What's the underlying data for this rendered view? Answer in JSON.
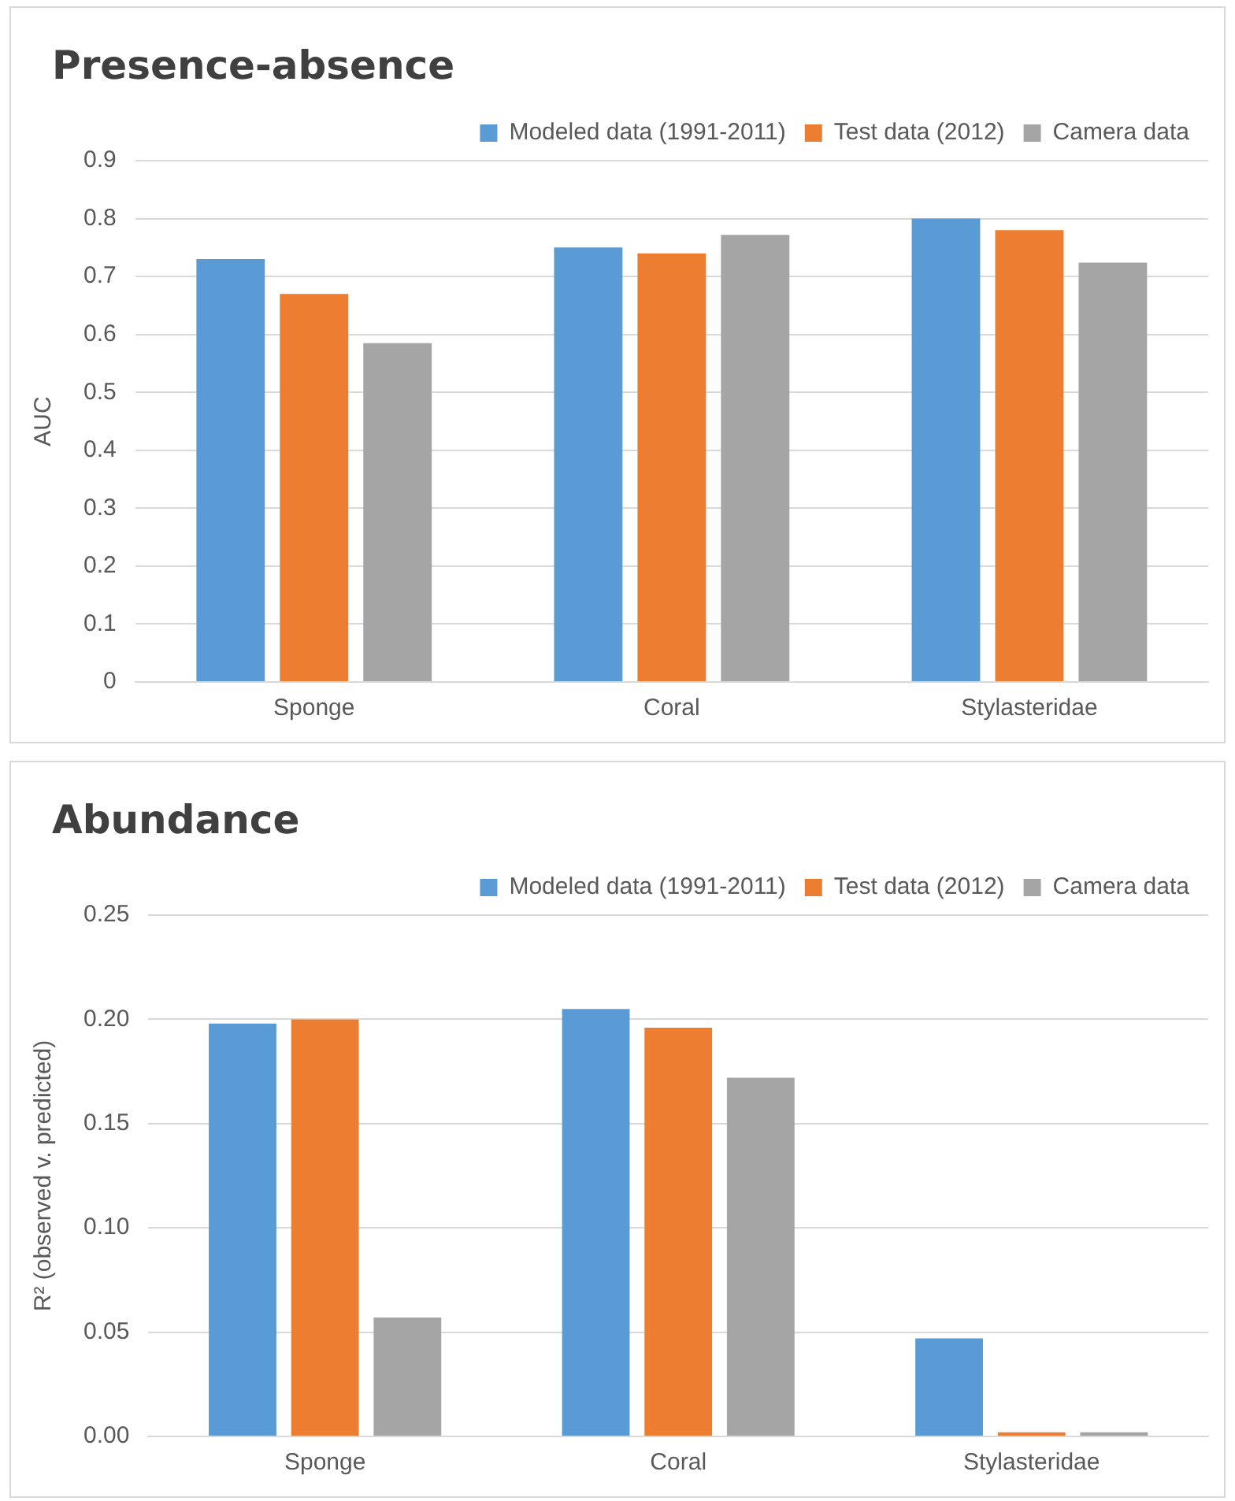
{
  "chart_data": [
    {
      "type": "bar",
      "title": "Presence-absence",
      "ylabel": "AUC",
      "categories": [
        "Sponge",
        "Coral",
        "Stylasteridae"
      ],
      "series": [
        {
          "name": "Modeled data (1991-2011)",
          "color": "#5b9bd5",
          "values": [
            0.73,
            0.75,
            0.8
          ]
        },
        {
          "name": "Test data (2012)",
          "color": "#ed7d31",
          "values": [
            0.67,
            0.74,
            0.78
          ]
        },
        {
          "name": "Camera data",
          "color": "#a5a5a5",
          "values": [
            0.585,
            0.772,
            0.724
          ]
        }
      ],
      "ylim": [
        0,
        0.9
      ],
      "yticks": [
        0,
        0.1,
        0.2,
        0.3,
        0.4,
        0.5,
        0.6,
        0.7,
        0.8,
        0.9
      ],
      "grid": "y",
      "legend": "top right"
    },
    {
      "type": "bar",
      "title": "Abundance",
      "ylabel": "R² (observed v. predicted)",
      "categories": [
        "Sponge",
        "Coral",
        "Stylasteridae"
      ],
      "series": [
        {
          "name": "Modeled data (1991-2011)",
          "color": "#5b9bd5",
          "values": [
            0.198,
            0.205,
            0.047
          ]
        },
        {
          "name": "Test data (2012)",
          "color": "#ed7d31",
          "values": [
            0.2,
            0.196,
            0.002
          ]
        },
        {
          "name": "Camera data",
          "color": "#a5a5a5",
          "values": [
            0.057,
            0.172,
            0.002
          ]
        }
      ],
      "ylim": [
        0,
        0.25
      ],
      "yticks": [
        {
          "value": 0,
          "label": "0.00"
        },
        {
          "value": 0.05,
          "label": "0.05"
        },
        {
          "value": 0.1,
          "label": "0.10"
        },
        {
          "value": 0.15,
          "label": "0.15"
        },
        {
          "value": 0.2,
          "label": "0.20"
        },
        {
          "value": 0.25,
          "label": "0.25"
        }
      ],
      "grid": "y",
      "legend": "top right"
    }
  ]
}
